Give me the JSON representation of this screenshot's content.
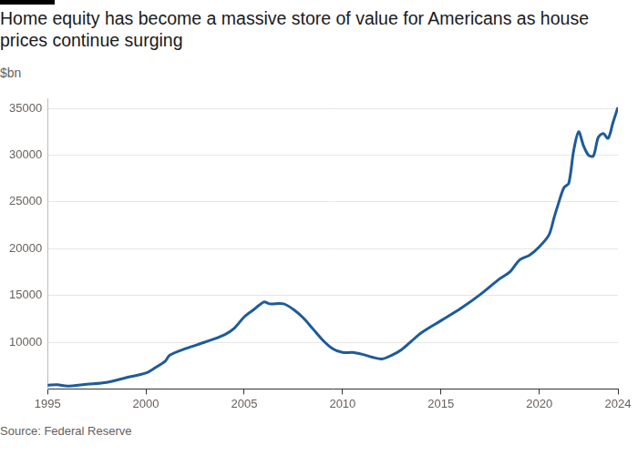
{
  "chart_data": {
    "type": "line",
    "title": "Home equity has become a massive store of value for Americans as house prices continue surging",
    "subtitle": "$bn",
    "source": "Source: Federal Reserve",
    "x": [
      1995,
      1995.5,
      1996,
      1997,
      1998,
      1999,
      2000,
      2000.5,
      2001,
      2001.2,
      2002,
      2003,
      2004,
      2004.5,
      2005,
      2005.5,
      2006,
      2006.3,
      2007,
      2007.5,
      2008,
      2008.5,
      2009,
      2009.5,
      2010,
      2010.5,
      2011,
      2011.5,
      2012,
      2012.5,
      2013,
      2013.5,
      2014,
      2015,
      2016,
      2017,
      2018,
      2018.5,
      2019,
      2019.5,
      2020,
      2020.5,
      2020.75,
      2021,
      2021.25,
      2021.5,
      2021.75,
      2022,
      2022.25,
      2022.5,
      2022.75,
      2023,
      2023.25,
      2023.5,
      2023.75,
      2024
    ],
    "values": [
      5400,
      5450,
      5300,
      5500,
      5700,
      6200,
      6700,
      7300,
      8000,
      8600,
      9300,
      10000,
      10800,
      11500,
      12700,
      13500,
      14300,
      14100,
      14100,
      13500,
      12600,
      11400,
      10200,
      9300,
      8900,
      8900,
      8700,
      8400,
      8200,
      8600,
      9200,
      10100,
      11000,
      12300,
      13600,
      15100,
      16800,
      17500,
      18800,
      19300,
      20200,
      21500,
      23300,
      25000,
      26500,
      27000,
      30500,
      32500,
      31000,
      30000,
      29900,
      31900,
      32300,
      31800,
      33500,
      35100
    ],
    "color": "#1d5b9a",
    "xlim": [
      1995,
      2024
    ],
    "xticks": [
      1995,
      2000,
      2005,
      2010,
      2015,
      2020,
      2024
    ],
    "ylim": [
      5000,
      36000
    ],
    "yticks": [
      10000,
      15000,
      20000,
      25000,
      30000,
      35000
    ],
    "grid": true
  }
}
